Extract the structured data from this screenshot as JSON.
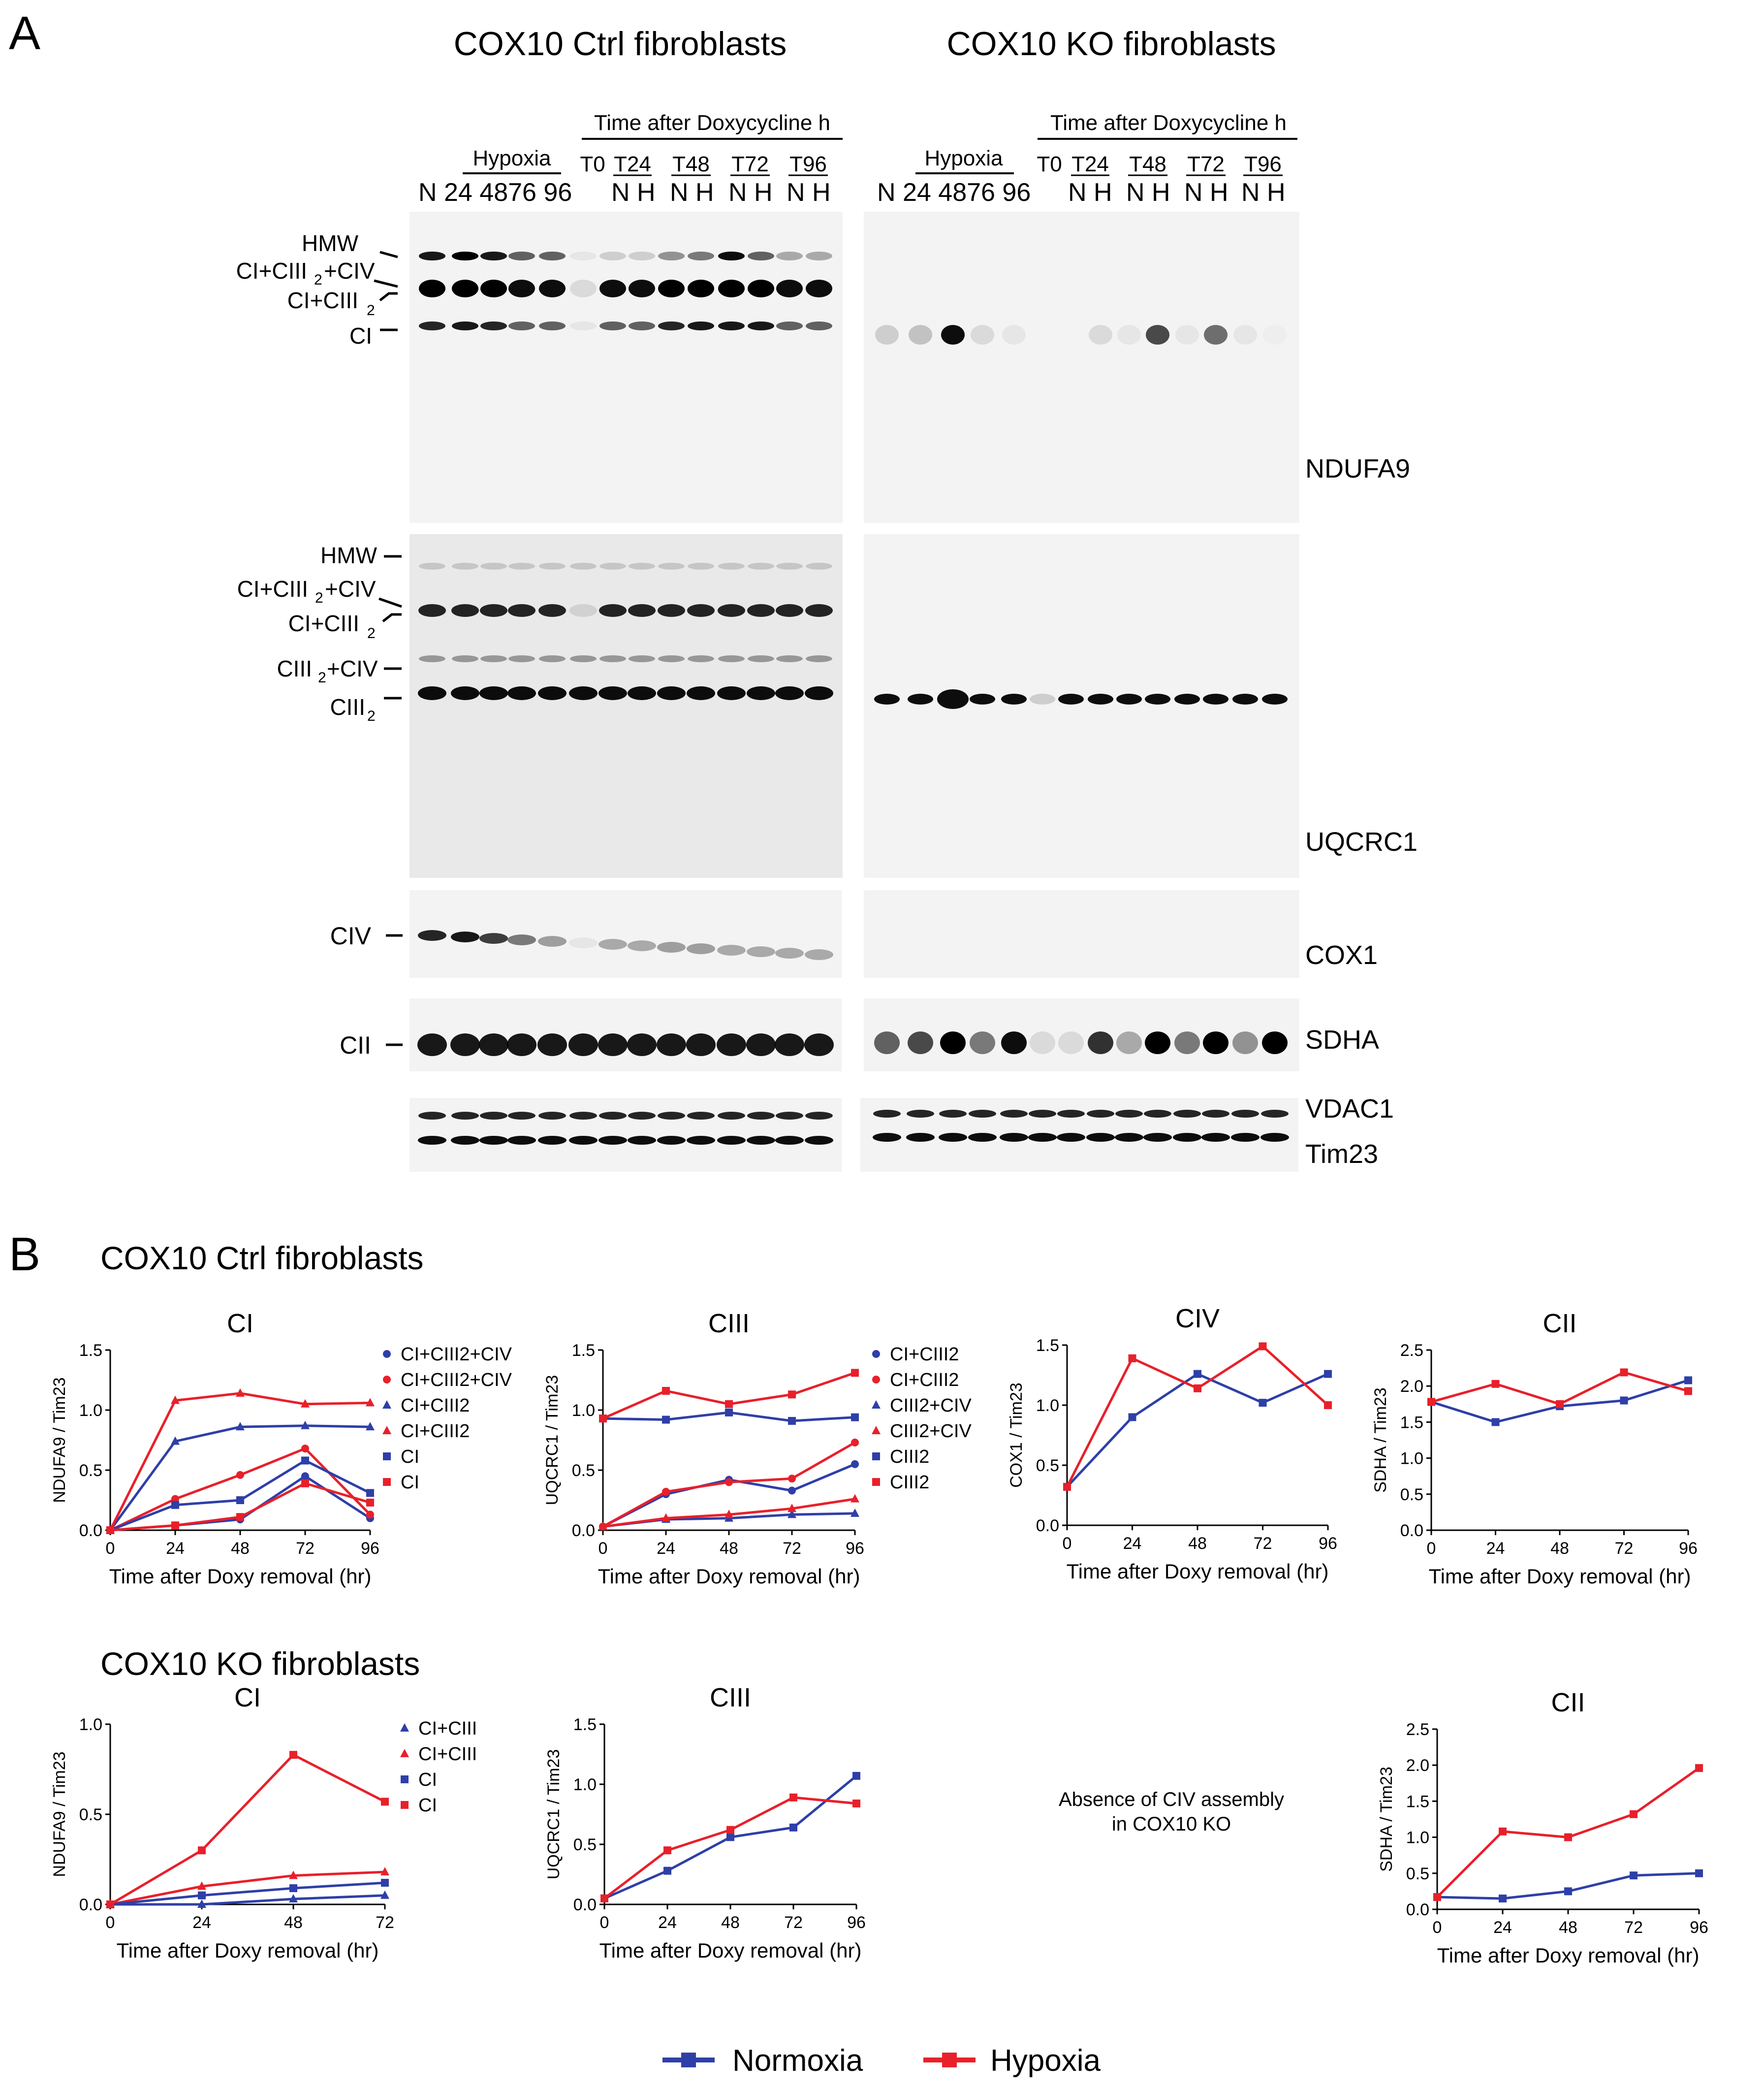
{
  "panels": {
    "a": "A",
    "b": "B"
  },
  "panelA": {
    "ctrl_title": "COX10 Ctrl  fibroblasts",
    "ko_title": "COX10 KO fibroblasts",
    "hypoxia_label": "Hypoxia",
    "doxy_label": "Time after Doxycycline h",
    "t0": "T0",
    "timepoints": [
      "T24",
      "T48",
      "T72",
      "T96"
    ],
    "hyp_lane_label_N": "N",
    "hyp_lanes": [
      "24",
      "48",
      "72",
      "96"
    ],
    "ctrl_hyp_lane_text": "N 24 4876 96",
    "ko_hyp_lane_text": "N 24 4876 96",
    "nh": "N H",
    "antibodies": [
      "NDUFA9",
      "UQCRC1",
      "COX1",
      "SDHA",
      "VDAC1",
      "Tim23"
    ],
    "ndufa9_bands": [
      "HMW",
      "CI+CIII",
      "+CIV",
      "CI+CIII",
      "CI"
    ],
    "uqcrc1_bands": [
      "HMW",
      "CI+CIII",
      "+CIV",
      "CI+CIII",
      "CIII",
      "+CIV",
      "CIII"
    ],
    "sub2": "2",
    "civ": "CIV",
    "cii": "CII"
  },
  "panelB": {
    "ctrl_title": "COX10 Ctrl fibroblasts",
    "ko_title": "COX10 KO fibroblasts",
    "xlabel": "Time after Doxy removal  (hr)",
    "absence_line1": "Absence of CIV assembly",
    "absence_line2": "in COX10 KO"
  },
  "legend": {
    "normoxia": "Normoxia",
    "hypoxia": "Hypoxia",
    "normoxia_color": "#2e3fa8",
    "hypoxia_color": "#e8202a"
  },
  "chart_data": [
    {
      "id": "ctrl-ci",
      "type": "line",
      "title": "CI",
      "ylabel": "NDUFA9 / Tim23",
      "xlabel": "Time after Doxy removal  (hr)",
      "xticks": [
        0,
        24,
        48,
        72,
        96
      ],
      "yticks": [
        "0.0",
        "0.5",
        "1.0",
        "1.5"
      ],
      "xlim": [
        0,
        96
      ],
      "ylim": [
        0,
        1.5
      ],
      "legend": [
        "CI+CIII2+CIV",
        "CI+CIII2+CIV",
        "CI+CIII2",
        "CI+CIII2",
        "CI",
        "CI"
      ],
      "series": [
        {
          "name": "CI+CIII2+CIV",
          "condition": "Normoxia",
          "marker": "circle",
          "x": [
            0,
            24,
            48,
            72,
            96
          ],
          "y": [
            0.0,
            0.04,
            0.09,
            0.45,
            0.1
          ]
        },
        {
          "name": "CI+CIII2+CIV",
          "condition": "Hypoxia",
          "marker": "circle",
          "x": [
            0,
            24,
            48,
            72,
            96
          ],
          "y": [
            0.0,
            0.26,
            0.46,
            0.68,
            0.13
          ]
        },
        {
          "name": "CI+CIII2",
          "condition": "Normoxia",
          "marker": "triangle",
          "x": [
            0,
            24,
            48,
            72,
            96
          ],
          "y": [
            0.0,
            0.74,
            0.86,
            0.87,
            0.86
          ]
        },
        {
          "name": "CI+CIII2",
          "condition": "Hypoxia",
          "marker": "triangle",
          "x": [
            0,
            24,
            48,
            72,
            96
          ],
          "y": [
            0.0,
            1.08,
            1.14,
            1.05,
            1.06
          ]
        },
        {
          "name": "CI",
          "condition": "Normoxia",
          "marker": "square",
          "x": [
            0,
            24,
            48,
            72,
            96
          ],
          "y": [
            0.0,
            0.21,
            0.25,
            0.58,
            0.31
          ]
        },
        {
          "name": "CI",
          "condition": "Hypoxia",
          "marker": "square",
          "x": [
            0,
            24,
            48,
            72,
            96
          ],
          "y": [
            0.0,
            0.04,
            0.11,
            0.39,
            0.23
          ]
        }
      ]
    },
    {
      "id": "ctrl-ciii",
      "type": "line",
      "title": "CIII",
      "ylabel": "UQCRC1 / Tim23",
      "xlabel": "Time after Doxy removal  (hr)",
      "xticks": [
        0,
        24,
        48,
        72,
        96
      ],
      "yticks": [
        "0.0",
        "0.5",
        "1.0",
        "1.5"
      ],
      "xlim": [
        0,
        96
      ],
      "ylim": [
        0,
        1.5
      ],
      "legend": [
        "CI+CIII2",
        "CI+CIII2",
        "CIII2+CIV",
        "CIII2+CIV",
        "CIII2",
        "CIII2"
      ],
      "series": [
        {
          "name": "CI+CIII2",
          "condition": "Normoxia",
          "marker": "circle",
          "x": [
            0,
            24,
            48,
            72,
            96
          ],
          "y": [
            0.03,
            0.3,
            0.42,
            0.33,
            0.55
          ]
        },
        {
          "name": "CI+CIII2",
          "condition": "Hypoxia",
          "marker": "circle",
          "x": [
            0,
            24,
            48,
            72,
            96
          ],
          "y": [
            0.03,
            0.32,
            0.4,
            0.43,
            0.73
          ]
        },
        {
          "name": "CIII2+CIV",
          "condition": "Normoxia",
          "marker": "triangle",
          "x": [
            0,
            24,
            48,
            72,
            96
          ],
          "y": [
            0.03,
            0.09,
            0.1,
            0.13,
            0.14
          ]
        },
        {
          "name": "CIII2+CIV",
          "condition": "Hypoxia",
          "marker": "triangle",
          "x": [
            0,
            24,
            48,
            72,
            96
          ],
          "y": [
            0.03,
            0.1,
            0.13,
            0.18,
            0.26
          ]
        },
        {
          "name": "CIII2",
          "condition": "Normoxia",
          "marker": "square",
          "x": [
            0,
            24,
            48,
            72,
            96
          ],
          "y": [
            0.93,
            0.92,
            0.98,
            0.91,
            0.94
          ]
        },
        {
          "name": "CIII2",
          "condition": "Hypoxia",
          "marker": "square",
          "x": [
            0,
            24,
            48,
            72,
            96
          ],
          "y": [
            0.93,
            1.16,
            1.05,
            1.13,
            1.31
          ]
        }
      ]
    },
    {
      "id": "ctrl-civ",
      "type": "line",
      "title": "CIV",
      "ylabel": "COX1 / Tim23",
      "xlabel": "Time after Doxy removal  (hr)",
      "xticks": [
        0,
        24,
        48,
        72,
        96
      ],
      "yticks": [
        "0.0",
        "0.5",
        "1.0",
        "1.5"
      ],
      "xlim": [
        0,
        96
      ],
      "ylim": [
        0,
        1.5
      ],
      "legend": [],
      "series": [
        {
          "name": "CIV",
          "condition": "Normoxia",
          "marker": "square",
          "x": [
            0,
            24,
            48,
            72,
            96
          ],
          "y": [
            0.32,
            0.9,
            1.26,
            1.02,
            1.26
          ]
        },
        {
          "name": "CIV",
          "condition": "Hypoxia",
          "marker": "square",
          "x": [
            0,
            24,
            48,
            72,
            96
          ],
          "y": [
            0.32,
            1.39,
            1.14,
            1.49,
            1.0
          ]
        }
      ]
    },
    {
      "id": "ctrl-cii",
      "type": "line",
      "title": "CII",
      "ylabel": "SDHA / Tim23",
      "xlabel": "Time after Doxy removal  (hr)",
      "xticks": [
        0,
        24,
        48,
        72,
        96
      ],
      "yticks": [
        "0.0",
        "0.5",
        "1.0",
        "1.5",
        "2.0",
        "2.5"
      ],
      "xlim": [
        0,
        96
      ],
      "ylim": [
        0,
        2.5
      ],
      "legend": [],
      "series": [
        {
          "name": "CII",
          "condition": "Normoxia",
          "marker": "square",
          "x": [
            0,
            24,
            48,
            72,
            96
          ],
          "y": [
            1.78,
            1.5,
            1.72,
            1.8,
            2.08
          ]
        },
        {
          "name": "CII",
          "condition": "Hypoxia",
          "marker": "square",
          "x": [
            0,
            24,
            48,
            72,
            96
          ],
          "y": [
            1.78,
            2.03,
            1.75,
            2.19,
            1.93
          ]
        }
      ]
    },
    {
      "id": "ko-ci",
      "type": "line",
      "title": "CI",
      "ylabel": "NDUFA9 / Tim23",
      "xlabel": "Time after Doxy removal  (hr)",
      "xticks": [
        0,
        24,
        48,
        72
      ],
      "yticks": [
        "0.0",
        "0.5",
        "1.0"
      ],
      "xlim": [
        0,
        72
      ],
      "ylim": [
        0,
        1.0
      ],
      "legend": [
        "CI+CIII",
        "CI+CIII",
        "CI",
        "CI"
      ],
      "series": [
        {
          "name": "CI+CIII",
          "condition": "Normoxia",
          "marker": "triangle",
          "x": [
            0,
            24,
            48,
            72
          ],
          "y": [
            0.0,
            0.0,
            0.03,
            0.05
          ]
        },
        {
          "name": "CI+CIII",
          "condition": "Hypoxia",
          "marker": "triangle",
          "x": [
            0,
            24,
            48,
            72
          ],
          "y": [
            0.0,
            0.1,
            0.16,
            0.18
          ]
        },
        {
          "name": "CI",
          "condition": "Normoxia",
          "marker": "square",
          "x": [
            0,
            24,
            48,
            72
          ],
          "y": [
            0.0,
            0.05,
            0.09,
            0.12
          ]
        },
        {
          "name": "CI",
          "condition": "Hypoxia",
          "marker": "square",
          "x": [
            0,
            24,
            48,
            72
          ],
          "y": [
            0.0,
            0.3,
            0.83,
            0.57
          ]
        }
      ]
    },
    {
      "id": "ko-ciii",
      "type": "line",
      "title": "CIII",
      "ylabel": "UQCRC1 / Tim23",
      "xlabel": "Time after Doxy removal  (hr)",
      "xticks": [
        0,
        24,
        48,
        72,
        96
      ],
      "yticks": [
        "0.0",
        "0.5",
        "1.0",
        "1.5"
      ],
      "xlim": [
        0,
        96
      ],
      "ylim": [
        0,
        1.5
      ],
      "legend": [],
      "series": [
        {
          "name": "CIII",
          "condition": "Normoxia",
          "marker": "square",
          "x": [
            0,
            24,
            48,
            72,
            96
          ],
          "y": [
            0.05,
            0.28,
            0.56,
            0.64,
            1.07
          ]
        },
        {
          "name": "CIII",
          "condition": "Hypoxia",
          "marker": "square",
          "x": [
            0,
            24,
            48,
            72,
            96
          ],
          "y": [
            0.05,
            0.45,
            0.62,
            0.89,
            0.84
          ]
        }
      ]
    },
    {
      "id": "ko-cii",
      "type": "line",
      "title": "CII",
      "ylabel": "SDHA / Tim23",
      "xlabel": "Time after Doxy removal  (hr)",
      "xticks": [
        0,
        24,
        48,
        72,
        96
      ],
      "yticks": [
        "0.0",
        "0.5",
        "1.0",
        "1.5",
        "2.0",
        "2.5"
      ],
      "xlim": [
        0,
        96
      ],
      "ylim": [
        0,
        2.5
      ],
      "legend": [],
      "series": [
        {
          "name": "CII",
          "condition": "Normoxia",
          "marker": "square",
          "x": [
            0,
            24,
            48,
            72,
            96
          ],
          "y": [
            0.17,
            0.15,
            0.25,
            0.47,
            0.5
          ]
        },
        {
          "name": "CII",
          "condition": "Hypoxia",
          "marker": "square",
          "x": [
            0,
            24,
            48,
            72,
            96
          ],
          "y": [
            0.17,
            1.08,
            1.0,
            1.32,
            1.96
          ]
        }
      ]
    }
  ]
}
